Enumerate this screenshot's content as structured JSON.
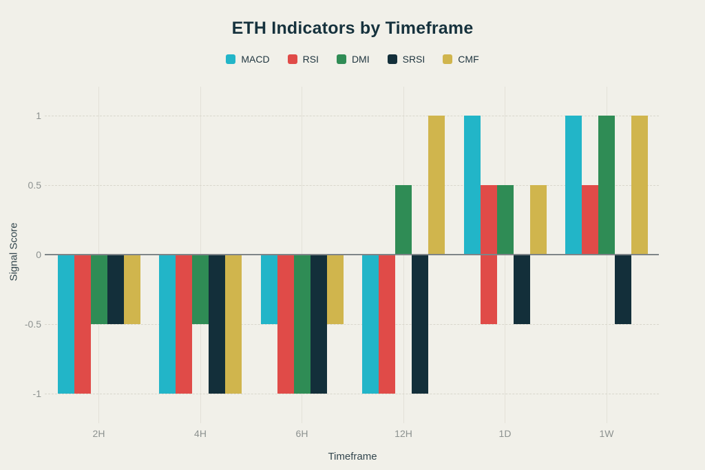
{
  "title": "ETH Indicators by Timeframe",
  "colors": {
    "background": "#f1f0e9",
    "title_text": "#16323d",
    "tick_text": "#8c918f",
    "axis_title_text": "#33464e",
    "zero_line": "#7e8487",
    "macd": "#22b5c8",
    "rsi": "#e04b48",
    "dmi": "#2f8c55",
    "srsi": "#132f3a",
    "cmf": "#d0b54d"
  },
  "chart_data": {
    "type": "bar",
    "title": "ETH Indicators by Timeframe",
    "xlabel": "Timeframe",
    "ylabel": "Signal Score",
    "categories": [
      "2H",
      "4H",
      "6H",
      "12H",
      "1D",
      "1W"
    ],
    "yticks": [
      1,
      0.5,
      0,
      -0.5,
      -1
    ],
    "ytick_labels": [
      "1",
      "0.5",
      "0",
      "-0.5",
      "-1"
    ],
    "ylim": [
      -1.2,
      1.2
    ],
    "grid": true,
    "legend_position": "top",
    "series": [
      {
        "name": "MACD",
        "color": "#22b5c8",
        "values": [
          -1,
          -1,
          -0.5,
          -1,
          1,
          1
        ],
        "bases": [
          0,
          0,
          0,
          0,
          0,
          0
        ]
      },
      {
        "name": "RSI",
        "color": "#e04b48",
        "values": [
          -1,
          -1,
          -1,
          -1,
          -0.5,
          0.5
        ],
        "bases": [
          0,
          0,
          0,
          0,
          0.5,
          0
        ]
      },
      {
        "name": "DMI",
        "color": "#2f8c55",
        "values": [
          -0.5,
          -0.5,
          -1,
          0.5,
          0.5,
          1
        ],
        "bases": [
          0,
          0,
          0,
          0,
          0,
          0
        ]
      },
      {
        "name": "SRSI",
        "color": "#132f3a",
        "values": [
          -0.5,
          -1,
          -1,
          -1,
          -0.5,
          -0.5
        ],
        "bases": [
          0,
          0,
          0,
          0,
          0,
          0
        ]
      },
      {
        "name": "CMF",
        "color": "#d0b54d",
        "values": [
          -0.5,
          -1,
          -0.5,
          1,
          0.5,
          1
        ],
        "bases": [
          0,
          0,
          0,
          0,
          0,
          0
        ]
      }
    ]
  }
}
